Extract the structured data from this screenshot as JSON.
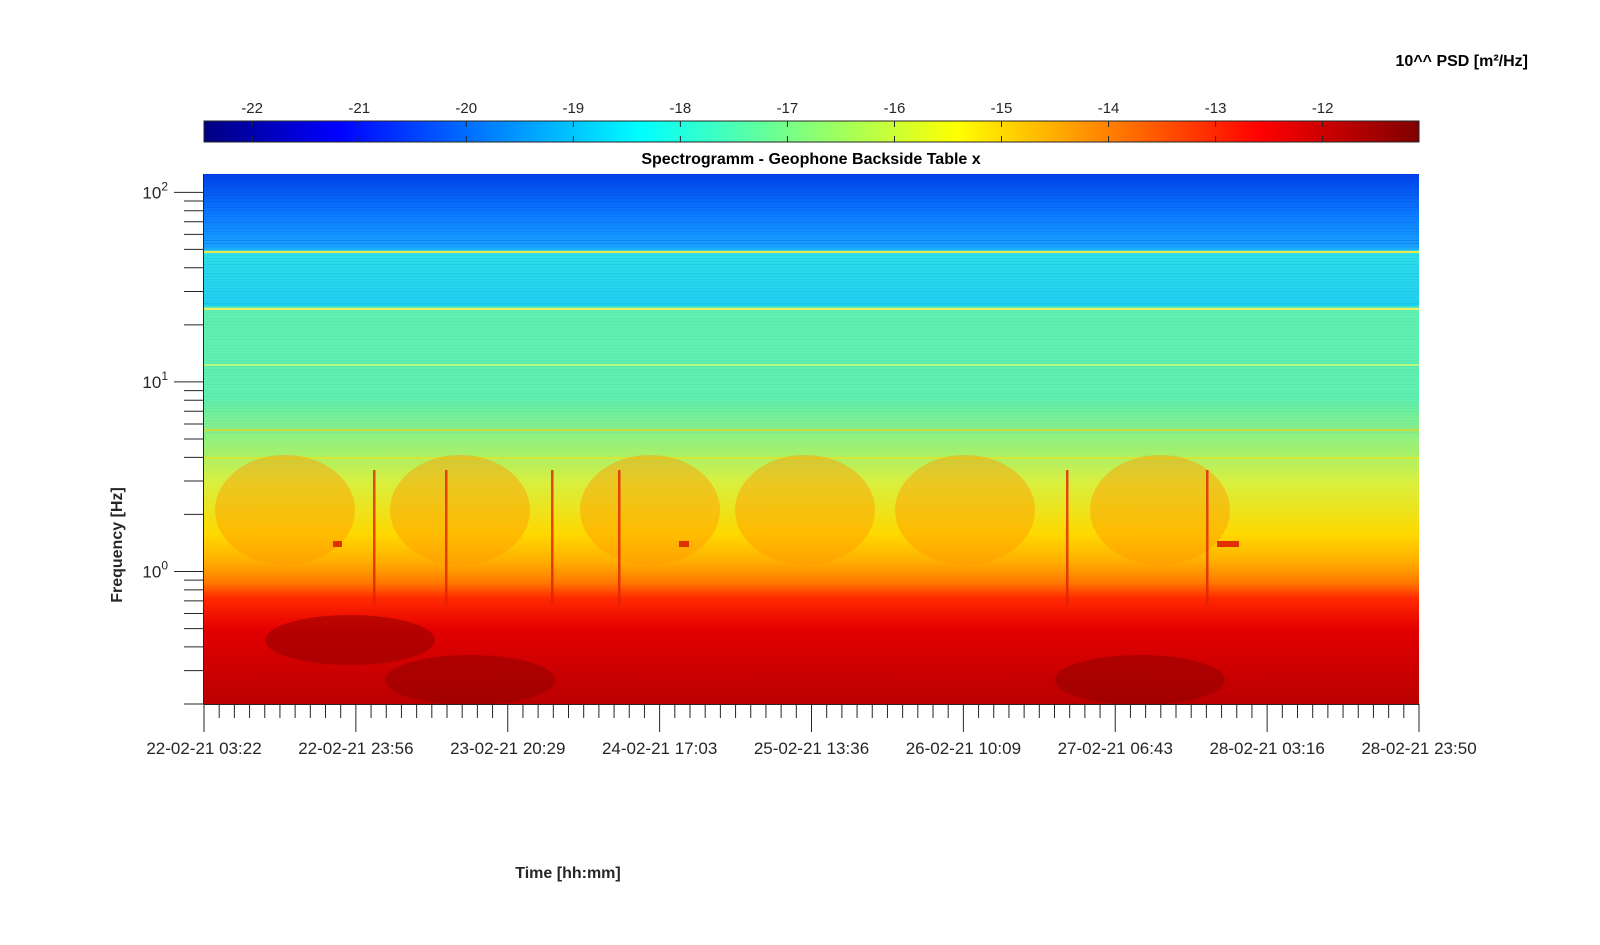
{
  "chart_data": {
    "type": "heatmap",
    "title": "Spectrogramm - Geophone Backside Table x",
    "xlabel": "Time [hh:mm]",
    "ylabel": "Frequency [Hz]",
    "x_tick_labels": [
      "22-02-21 03:22",
      "22-02-21 23:56",
      "23-02-21 20:29",
      "24-02-21 17:03",
      "25-02-21 13:36",
      "26-02-21 10:09",
      "27-02-21 06:43",
      "28-02-21 03:16",
      "28-02-21 23:50"
    ],
    "y_scale": "log",
    "y_ticks": [
      {
        "base": "10",
        "exp": "0",
        "value": 1
      },
      {
        "base": "10",
        "exp": "1",
        "value": 10
      },
      {
        "base": "10",
        "exp": "2",
        "value": 100
      }
    ],
    "ylim": [
      0.2,
      125
    ],
    "colorbar": {
      "label": "10^^ PSD [m²/Hz]",
      "ticks": [
        "-22",
        "-21",
        "-20",
        "-19",
        "-18",
        "-17",
        "-16",
        "-15",
        "-14",
        "-13",
        "-12"
      ],
      "range": [
        -22.45,
        -11.1
      ],
      "colormap": "jet",
      "location": "top"
    },
    "approx_profile": {
      "description_freq_hz": [
        0.2,
        0.6,
        0.9,
        1.2,
        2.0,
        3.5,
        5,
        10,
        23,
        50,
        125
      ],
      "log10_psd": [
        -12.0,
        -12.4,
        -13.6,
        -14.6,
        -15.3,
        -15.7,
        -16.6,
        -17.1,
        -17.4,
        -18.4,
        -20.4
      ]
    }
  }
}
